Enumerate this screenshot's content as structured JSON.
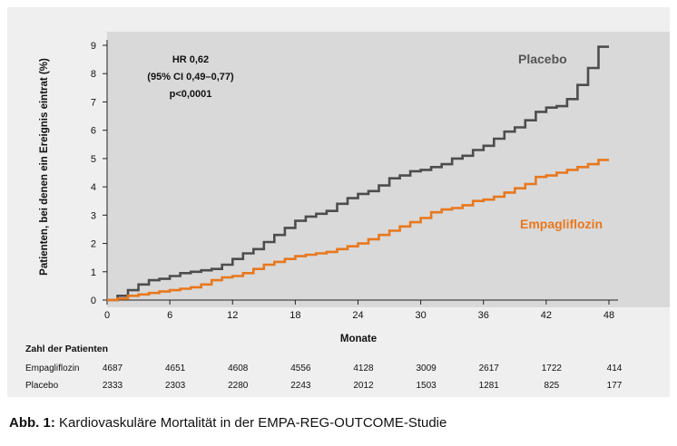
{
  "chart_data": {
    "type": "line",
    "ylabel": "Patienten, bei denen ein Ereignis eintrat (%)",
    "xlabel": "Monate",
    "xlim": [
      0,
      48
    ],
    "ylim": [
      0,
      9
    ],
    "xticks": [
      0,
      6,
      12,
      18,
      24,
      30,
      36,
      42,
      48
    ],
    "yticks": [
      0,
      1,
      2,
      3,
      4,
      5,
      6,
      7,
      8,
      9
    ],
    "grid": false,
    "annotation": [
      "HR 0,62",
      "(95% CI 0,49–0,77)",
      "p<0,0001"
    ],
    "series": [
      {
        "name": "Placebo",
        "color": "#4d4d4d",
        "x": [
          0,
          1,
          2,
          3,
          4,
          5,
          6,
          7,
          8,
          9,
          10,
          11,
          12,
          13,
          14,
          15,
          16,
          17,
          18,
          19,
          20,
          21,
          22,
          23,
          24,
          25,
          26,
          27,
          28,
          29,
          30,
          31,
          32,
          33,
          34,
          35,
          36,
          37,
          38,
          39,
          40,
          41,
          42,
          43,
          44,
          45,
          46,
          47,
          48
        ],
        "values": [
          0,
          0.15,
          0.35,
          0.55,
          0.7,
          0.75,
          0.85,
          0.95,
          1.0,
          1.05,
          1.1,
          1.25,
          1.45,
          1.65,
          1.8,
          2.05,
          2.3,
          2.55,
          2.8,
          2.95,
          3.05,
          3.15,
          3.4,
          3.6,
          3.75,
          3.85,
          4.05,
          4.3,
          4.4,
          4.55,
          4.6,
          4.7,
          4.8,
          5.0,
          5.1,
          5.3,
          5.45,
          5.7,
          5.95,
          6.1,
          6.35,
          6.65,
          6.8,
          6.85,
          7.1,
          7.6,
          8.2,
          8.95,
          8.95
        ]
      },
      {
        "name": "Empagliflozin",
        "color": "#e8781e",
        "x": [
          0,
          1,
          2,
          3,
          4,
          5,
          6,
          7,
          8,
          9,
          10,
          11,
          12,
          13,
          14,
          15,
          16,
          17,
          18,
          19,
          20,
          21,
          22,
          23,
          24,
          25,
          26,
          27,
          28,
          29,
          30,
          31,
          32,
          33,
          34,
          35,
          36,
          37,
          38,
          39,
          40,
          41,
          42,
          43,
          44,
          45,
          46,
          47,
          48
        ],
        "values": [
          0,
          0.05,
          0.15,
          0.2,
          0.25,
          0.3,
          0.35,
          0.4,
          0.45,
          0.55,
          0.7,
          0.8,
          0.85,
          0.95,
          1.1,
          1.25,
          1.35,
          1.45,
          1.55,
          1.6,
          1.65,
          1.7,
          1.8,
          1.9,
          2.0,
          2.15,
          2.3,
          2.45,
          2.6,
          2.75,
          2.9,
          3.1,
          3.2,
          3.25,
          3.35,
          3.5,
          3.55,
          3.65,
          3.8,
          3.95,
          4.1,
          4.35,
          4.4,
          4.5,
          4.6,
          4.7,
          4.8,
          4.95,
          4.95
        ]
      }
    ],
    "at_risk": {
      "title": "Zahl der Patienten",
      "rows": [
        {
          "name": "Empagliflozin",
          "values": [
            "4687",
            "4651",
            "4608",
            "4556",
            "4128",
            "3009",
            "2617",
            "1722",
            "414"
          ]
        },
        {
          "name": "Placebo",
          "values": [
            "2333",
            "2303",
            "2280",
            "2243",
            "2012",
            "1503",
            "1281",
            "825",
            "177"
          ]
        }
      ]
    }
  },
  "caption": {
    "label": "Abb. 1:",
    "text": "Kardiovaskuläre Mortalität in der EMPA-REG-OUTCOME-Studie"
  }
}
